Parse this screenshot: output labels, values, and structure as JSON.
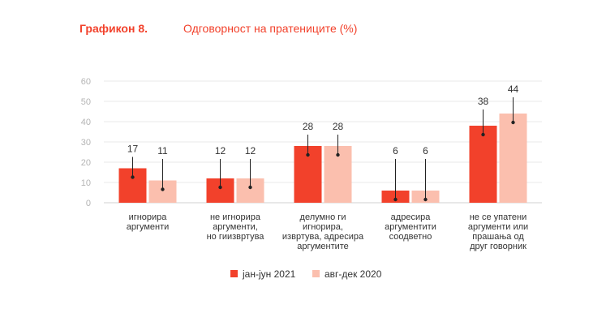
{
  "header": {
    "number": "Графикон 8.",
    "title": "Одговорност на пратениците  (%)"
  },
  "chart_data": {
    "type": "bar",
    "title": "Одговорност на пратениците  (%)",
    "categories": [
      [
        "игнорира",
        "аргументи"
      ],
      [
        "не игнорира",
        "аргументи,",
        "но гиизвртува"
      ],
      [
        "делумно ги",
        "игнорира,",
        "извртува, адресира",
        "аргументите"
      ],
      [
        "адресира",
        "аргументити",
        "соодветно"
      ],
      [
        "не се упатени",
        "аргументи или",
        "прашања од",
        "друг говорник"
      ]
    ],
    "series": [
      {
        "name": "јан-јун 2021",
        "values": [
          17,
          12,
          28,
          6,
          38
        ],
        "color": "#f2412b"
      },
      {
        "name": "авг-дек 2020",
        "values": [
          11,
          12,
          28,
          6,
          44
        ],
        "color": "#fbbfae"
      }
    ],
    "ylim": [
      0,
      60
    ],
    "yticks": [
      0,
      10,
      20,
      30,
      40,
      50,
      60
    ],
    "grid": true,
    "legend": "bottom-center"
  }
}
